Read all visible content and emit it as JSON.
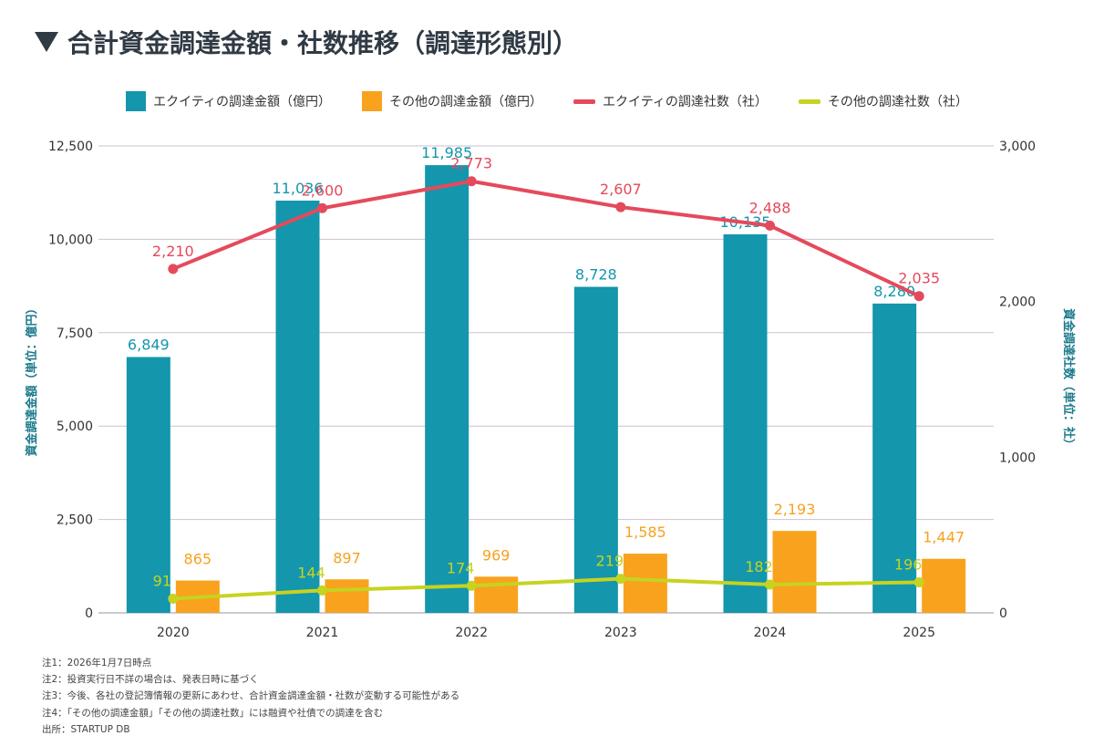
{
  "title": "合計資金調達金額・社数推移（調達形態別）",
  "colors": {
    "equity_amount": "#1497ad",
    "other_amount": "#f8a21e",
    "equity_count": "#e4495c",
    "other_count": "#c6d320",
    "grid": "#cfc0d3",
    "axis_label": "#1a7a8c"
  },
  "chart_data": {
    "type": "bar",
    "categories": [
      "2020",
      "2021",
      "2022",
      "2023",
      "2024",
      "2025"
    ],
    "series": [
      {
        "name": "エクイティの調達金額（億円）",
        "kind": "bar",
        "axis": "left",
        "values": [
          6849,
          11036,
          11985,
          8728,
          10135,
          8280
        ],
        "labels": [
          "6,849",
          "11,036",
          "11,985",
          "8,728",
          "10,135",
          "8,280"
        ]
      },
      {
        "name": "その他の調達金額（億円）",
        "kind": "bar",
        "axis": "left",
        "values": [
          865,
          897,
          969,
          1585,
          2193,
          1447
        ],
        "labels": [
          "865",
          "897",
          "969",
          "1,585",
          "2,193",
          "1,447"
        ]
      },
      {
        "name": "エクイティの調達社数（社）",
        "kind": "line",
        "axis": "right",
        "values": [
          2210,
          2600,
          2773,
          2607,
          2488,
          2035
        ],
        "labels": [
          "2,210",
          "2,600",
          "2,773",
          "2,607",
          "2,488",
          "2,035"
        ]
      },
      {
        "name": "その他の調達社数（社）",
        "kind": "line",
        "axis": "right",
        "values": [
          91,
          144,
          174,
          219,
          182,
          196
        ],
        "labels": [
          "91",
          "144",
          "174",
          "219",
          "182",
          "196"
        ]
      }
    ],
    "ylabel_left": "資金調達金額（単位：億円）",
    "ylabel_right": "資金調達社数（単位：社）",
    "ylim_left": [
      0,
      12500
    ],
    "ylim_right": [
      0,
      3000
    ],
    "yticks_left": [
      "0",
      "2,500",
      "5,000",
      "7,500",
      "10,000",
      "12,500"
    ],
    "yticks_right": [
      "0",
      "1,000",
      "2,000",
      "3,000"
    ],
    "grid": true,
    "legend_position": "top"
  },
  "notes": [
    "注1：2026年1月7日時点",
    "注2：投資実行日不詳の場合は、発表日時に基づく",
    "注3：今後、各社の登記簿情報の更新にあわせ、合計資金調達金額・社数が変動する可能性がある",
    "注4：「その他の調達金額」「その他の調達社数」には融資や社債での調達を含む",
    "出所：STARTUP DB"
  ]
}
